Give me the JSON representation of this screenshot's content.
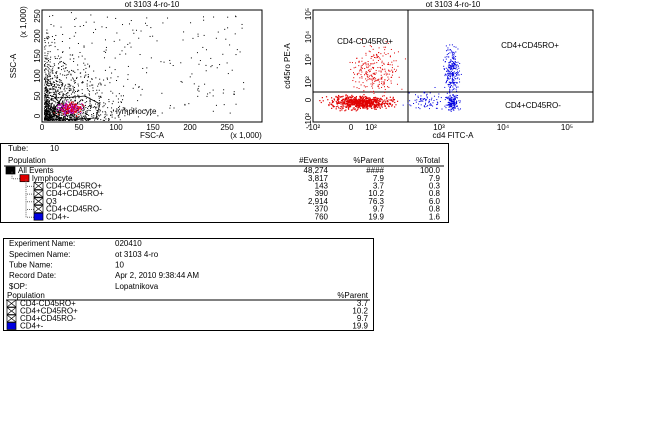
{
  "plots": [
    {
      "title": "ot 3103 4-ro-10",
      "y_label": "SSC-A",
      "x_label": "FSC-A",
      "y_scale_note": "(x 1,000)",
      "x_scale_note": "(x 1,000)",
      "yticks": [
        "250",
        "200",
        "150",
        "100",
        "50",
        "0"
      ],
      "xticks": [
        "0",
        "50",
        "100",
        "150",
        "200",
        "250"
      ],
      "gate_label": "lymphocyte"
    },
    {
      "title": "ot 3103 4-ro-10",
      "y_label": "cd45ro PE-A",
      "x_label": "cd4 FITC-A",
      "yticks": [
        "10⁵",
        "10⁴",
        "10³",
        "10²",
        "0",
        "-10²"
      ],
      "xticks": [
        "-10²",
        "0",
        "10²",
        "10³",
        "10⁴",
        "10⁵"
      ],
      "quadrants": [
        "CD4-CD45RO+",
        "CD4+CD45RO+",
        "CD4+CD45RO-"
      ]
    }
  ],
  "table": {
    "tube_label": "Tube:",
    "tube": "10",
    "columns": [
      "Population",
      "#Events",
      "%Parent",
      "%Total"
    ],
    "rows": [
      {
        "name": "All Events",
        "icon": "#000000",
        "level": 0,
        "cells": [
          "48,274",
          "####",
          "100.0"
        ]
      },
      {
        "name": "lymphocyte",
        "icon": "#e00000",
        "level": 1,
        "cells": [
          "3,817",
          "7.9",
          "7.9"
        ]
      },
      {
        "name": "CD4-CD45RO+",
        "icon": "x",
        "level": 2,
        "cells": [
          "143",
          "3.7",
          "0.3"
        ]
      },
      {
        "name": "CD4+CD45RO+",
        "icon": "x",
        "level": 2,
        "cells": [
          "390",
          "10.2",
          "0.8"
        ]
      },
      {
        "name": "Q3",
        "icon": "x",
        "level": 2,
        "cells": [
          "2,914",
          "76.3",
          "6.0"
        ]
      },
      {
        "name": "CD4+CD45RO-",
        "icon": "x",
        "level": 2,
        "cells": [
          "370",
          "9.7",
          "0.8"
        ]
      },
      {
        "name": "CD4+-",
        "icon": "#0000e0",
        "level": 2,
        "cells": [
          "760",
          "19.9",
          "1.6"
        ]
      }
    ]
  },
  "info": {
    "fields": [
      [
        "Experiment Name:",
        "020410"
      ],
      [
        "Specimen Name:",
        "ot 3103 4-ro"
      ],
      [
        "Tube Name:",
        "10"
      ],
      [
        "Record Date:",
        "Apr 2, 2010 9:38:44 AM"
      ],
      [
        "$OP:",
        "Lopatnikova"
      ]
    ],
    "columns": [
      "Population",
      "%Parent"
    ],
    "rows": [
      {
        "name": "CD4-CD45RO+",
        "icon": "x",
        "value": "3.7"
      },
      {
        "name": "CD4+CD45RO+",
        "icon": "x",
        "value": "10.2"
      },
      {
        "name": "CD4+CD45RO-",
        "icon": "x",
        "value": "9.7"
      },
      {
        "name": "CD4+-",
        "icon": "#0000e0",
        "value": "19.9"
      }
    ]
  }
}
